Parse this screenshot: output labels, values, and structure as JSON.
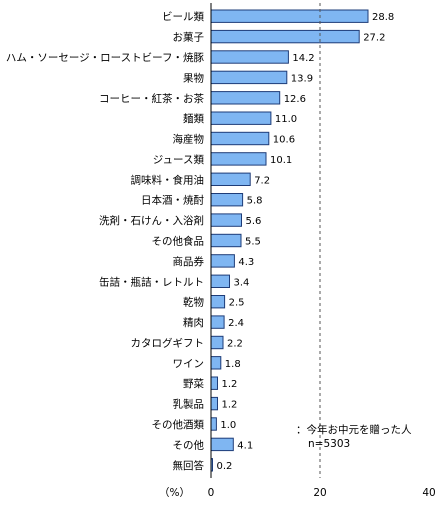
{
  "chart_data": {
    "type": "bar",
    "orientation": "horizontal",
    "categories": [
      "ビール類",
      "お菓子",
      "ハム・ソーセージ・ローストビーフ・焼豚",
      "果物",
      "コーヒー・紅茶・お茶",
      "麺類",
      "海産物",
      "ジュース類",
      "調味料・食用油",
      "日本酒・焼酎",
      "洗剤・石けん・入浴剤",
      "その他食品",
      "商品券",
      "缶詰・瓶詰・レトルト",
      "乾物",
      "精肉",
      "カタログギフト",
      "ワイン",
      "野菜",
      "乳製品",
      "その他酒類",
      "その他",
      "無回答"
    ],
    "values": [
      28.8,
      27.2,
      14.2,
      13.9,
      12.6,
      11.0,
      10.6,
      10.1,
      7.2,
      5.8,
      5.6,
      5.5,
      4.3,
      3.4,
      2.5,
      2.4,
      2.2,
      1.8,
      1.2,
      1.2,
      1.0,
      4.1,
      0.2
    ],
    "value_labels": [
      "28.8",
      "27.2",
      "14.2",
      "13.9",
      "12.6",
      "11.0",
      "10.6",
      "10.1",
      "7.2",
      "5.8",
      "5.6",
      "5.5",
      "4.3",
      "3.4",
      "2.5",
      "2.4",
      "2.2",
      "1.8",
      "1.2",
      "1.2",
      "1.0",
      "4.1",
      "0.2"
    ],
    "xlim": [
      0,
      40
    ],
    "xticks": [
      "0",
      "20",
      "40"
    ],
    "reference_line_at": 20,
    "unit_label": "（%）",
    "note_lines": [
      "：今年お中元を贈った人",
      "n=5303"
    ],
    "bar_color": "#7fb6f2",
    "bar_stroke": "#1e3c78"
  }
}
